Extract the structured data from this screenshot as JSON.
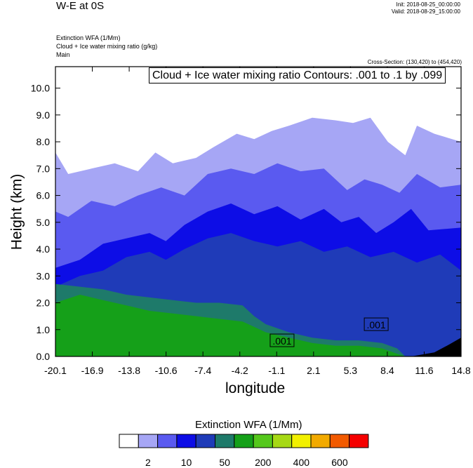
{
  "header": {
    "title": "W-E at 0S",
    "init": "Init: 2018-08-25_00:00:00",
    "valid": "Valid: 2018-08-29_15:00:00",
    "variables": [
      "Extinction WFA   (1/Mm)",
      "Cloud + Ice water mixing ratio   (g/kg)",
      "Main"
    ],
    "cross_section": "Cross-Section: (130,420) to (454,420)",
    "contour_note": "Cloud + Ice water mixing ratio Contours: .001 to .1 by .099"
  },
  "colorbar": {
    "title": "Extinction WFA  (1/Mm)",
    "colors": [
      "#ffffff",
      "#a6a6f5",
      "#5a5af0",
      "#0d0de6",
      "#1f3bb8",
      "#1e7a6a",
      "#15a019",
      "#55c81c",
      "#a6d915",
      "#f2f000",
      "#f2aa00",
      "#f25a00",
      "#f50000"
    ],
    "labels": [
      "2",
      "10",
      "50",
      "200",
      "400",
      "600"
    ]
  },
  "chart_data": {
    "type": "heatmap",
    "title": "W-E at 0S",
    "xlabel": "longitude",
    "ylabel": "Height (km)",
    "x_ticks": [
      "-20.1",
      "-16.9",
      "-13.8",
      "-10.6",
      "-7.4",
      "-4.2",
      "-1.1",
      "2.1",
      "5.3",
      "8.4",
      "11.6",
      "14.8"
    ],
    "y_ticks": [
      "0.0",
      "1.0",
      "2.0",
      "3.0",
      "4.0",
      "5.0",
      "6.0",
      "7.0",
      "8.0",
      "9.0",
      "10.0"
    ],
    "xlim": [
      -20.1,
      14.8
    ],
    "ylim": [
      0,
      10.8
    ],
    "contour_labels": [
      {
        "text": ".001",
        "x": -0.6,
        "y": 0.6
      },
      {
        "text": ".001",
        "x": 7.5,
        "y": 1.2
      }
    ],
    "layers": [
      {
        "level": "2",
        "color": "#a6a6f5",
        "top": [
          [
            -20.1,
            7.6
          ],
          [
            -19,
            6.8
          ],
          [
            -17,
            7.0
          ],
          [
            -15,
            7.2
          ],
          [
            -13,
            6.9
          ],
          [
            -11.5,
            7.6
          ],
          [
            -10,
            7.2
          ],
          [
            -8,
            7.4
          ],
          [
            -6.5,
            7.8
          ],
          [
            -4.5,
            8.3
          ],
          [
            -3,
            8.1
          ],
          [
            -1.5,
            8.4
          ],
          [
            0,
            8.6
          ],
          [
            2,
            8.9
          ],
          [
            4,
            8.8
          ],
          [
            5.5,
            8.7
          ],
          [
            7,
            8.9
          ],
          [
            8.5,
            8.0
          ],
          [
            10,
            7.5
          ],
          [
            11,
            8.6
          ],
          [
            12.5,
            8.3
          ],
          [
            14.8,
            8.0
          ]
        ]
      },
      {
        "level": "10",
        "color": "#5a5af0",
        "top": [
          [
            -20.1,
            5.4
          ],
          [
            -19,
            5.2
          ],
          [
            -17,
            5.8
          ],
          [
            -15,
            5.6
          ],
          [
            -13,
            6.0
          ],
          [
            -11,
            6.3
          ],
          [
            -9,
            6.0
          ],
          [
            -7,
            6.8
          ],
          [
            -5,
            7.0
          ],
          [
            -3,
            6.8
          ],
          [
            -1,
            7.2
          ],
          [
            1,
            6.9
          ],
          [
            3,
            7.0
          ],
          [
            5,
            6.2
          ],
          [
            6.5,
            6.6
          ],
          [
            8,
            6.4
          ],
          [
            9.5,
            6.1
          ],
          [
            11,
            6.8
          ],
          [
            13,
            6.3
          ],
          [
            14.8,
            6.4
          ]
        ]
      },
      {
        "level": "50",
        "color": "#0d0de6",
        "top": [
          [
            -20.1,
            3.3
          ],
          [
            -18,
            3.6
          ],
          [
            -16,
            4.2
          ],
          [
            -14,
            4.4
          ],
          [
            -12,
            4.6
          ],
          [
            -10.6,
            4.3
          ],
          [
            -9,
            4.9
          ],
          [
            -7,
            5.4
          ],
          [
            -5,
            5.7
          ],
          [
            -3,
            5.3
          ],
          [
            -1,
            5.6
          ],
          [
            1,
            5.1
          ],
          [
            3,
            5.5
          ],
          [
            4.5,
            5.0
          ],
          [
            6,
            5.2
          ],
          [
            7.5,
            4.6
          ],
          [
            9,
            5.0
          ],
          [
            10.5,
            5.5
          ],
          [
            12,
            4.7
          ],
          [
            14.8,
            4.8
          ]
        ]
      },
      {
        "level": "200",
        "color": "#1f3bb8",
        "top": [
          [
            -20.1,
            2.6
          ],
          [
            -18,
            3.0
          ],
          [
            -16,
            3.2
          ],
          [
            -14,
            3.7
          ],
          [
            -12,
            3.9
          ],
          [
            -10.6,
            3.6
          ],
          [
            -9,
            4.0
          ],
          [
            -7,
            4.4
          ],
          [
            -5,
            4.6
          ],
          [
            -3,
            4.3
          ],
          [
            -1,
            4.1
          ],
          [
            1,
            4.3
          ],
          [
            3,
            3.9
          ],
          [
            5,
            4.1
          ],
          [
            7,
            3.7
          ],
          [
            9,
            3.9
          ],
          [
            11,
            3.5
          ],
          [
            13,
            3.8
          ],
          [
            14.8,
            3.2
          ]
        ]
      },
      {
        "level": "400",
        "color": "#1e7a6a",
        "top": [
          [
            -20.1,
            2.7
          ],
          [
            -18,
            2.6
          ],
          [
            -16,
            2.5
          ],
          [
            -14,
            2.3
          ],
          [
            -12,
            2.2
          ],
          [
            -10,
            2.1
          ],
          [
            -8,
            2.0
          ],
          [
            -6,
            2.0
          ],
          [
            -4,
            1.9
          ],
          [
            -3,
            1.5
          ],
          [
            -2,
            1.2
          ],
          [
            0,
            0.9
          ],
          [
            2,
            0.7
          ],
          [
            4,
            0.6
          ],
          [
            6,
            0.6
          ],
          [
            8,
            0.5
          ],
          [
            9.3,
            0.3
          ],
          [
            10,
            0.0
          ],
          [
            14.8,
            0.0
          ]
        ]
      },
      {
        "level": "600",
        "color": "#15a019",
        "top": [
          [
            -20.1,
            2.0
          ],
          [
            -18,
            2.3
          ],
          [
            -16,
            2.1
          ],
          [
            -14,
            1.9
          ],
          [
            -12,
            1.7
          ],
          [
            -10,
            1.6
          ],
          [
            -8,
            1.5
          ],
          [
            -6,
            1.4
          ],
          [
            -4,
            1.3
          ],
          [
            -3,
            1.1
          ],
          [
            -2,
            0.9
          ],
          [
            0,
            0.7
          ],
          [
            2,
            0.5
          ],
          [
            4,
            0.4
          ],
          [
            6,
            0.4
          ],
          [
            8,
            0.3
          ],
          [
            9.3,
            0.1
          ],
          [
            10,
            0.0
          ],
          [
            14.8,
            0.0
          ]
        ]
      }
    ]
  }
}
